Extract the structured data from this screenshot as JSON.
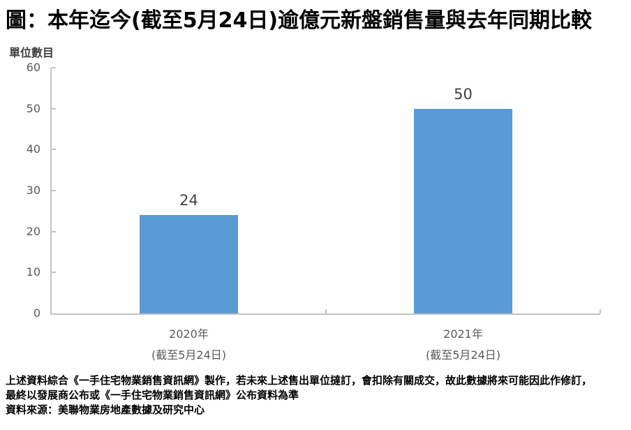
{
  "title": "圖：本年迄今(截至5月24日)逾億元新盤銷售量與去年同期比較",
  "chart_data": {
    "type": "bar",
    "categories": [
      "2020年",
      "2021年"
    ],
    "category_sublabels": [
      "(截至5月24日)",
      "(截至5月24日)"
    ],
    "values": [
      24,
      50
    ],
    "data_labels": [
      "24",
      "50"
    ],
    "title": "圖：本年迄今(截至5月24日)逾億元新盤銷售量與去年同期比較",
    "xlabel": "",
    "ylabel": "單位數目",
    "ylim": [
      0,
      60
    ],
    "ytick_step": 10,
    "grid": false,
    "legend_position": "none",
    "colors": {
      "bar": "#5B9BD5",
      "axis_line": "#C3C3C3",
      "tick_label": "#595959",
      "data_label": "#404040",
      "title": "#000000"
    }
  },
  "footer": {
    "line1": "上述資料綜合《一手住宅物業銷售資訊網》製作，若未來上述售出單位撻訂，會扣除有關成交，故此數據將來可能因此作修訂，",
    "line2": "最終以發展商公布或《一手住宅物業銷售資訊網》公布資料為準",
    "line3": "資料來源：美聯物業房地產數據及研究中心"
  }
}
